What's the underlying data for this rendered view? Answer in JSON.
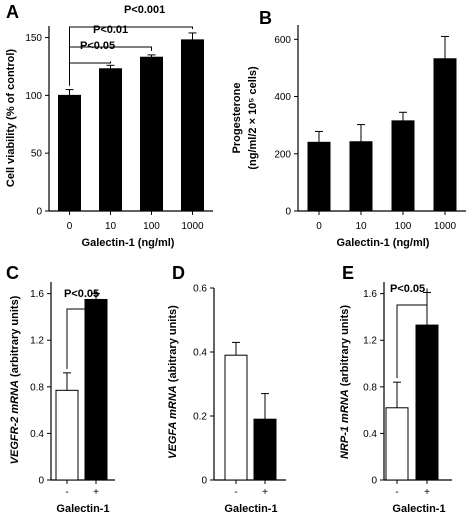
{
  "chart_data": [
    {
      "panel": "A",
      "type": "bar",
      "categories": [
        "0",
        "10",
        "100",
        "1000"
      ],
      "values": [
        100,
        123,
        133,
        148
      ],
      "errors": [
        5,
        3,
        2,
        6
      ],
      "ylabel": "Cell viability (% of control)",
      "xlabel": "Galectin-1 (ng/ml)",
      "ylim": [
        0,
        160
      ],
      "yticks": [
        "0",
        "50",
        "100",
        "150"
      ],
      "bar_color": "#000000",
      "significance": [
        {
          "from": 0,
          "to": 1,
          "label": "P<0.05"
        },
        {
          "from": 0,
          "to": 2,
          "label": "P<0.01"
        },
        {
          "from": 0,
          "to": 3,
          "label": "P<0.001"
        }
      ]
    },
    {
      "panel": "B",
      "type": "bar",
      "categories": [
        "0",
        "10",
        "100",
        "1000"
      ],
      "values": [
        240,
        242,
        315,
        532
      ],
      "errors": [
        38,
        60,
        30,
        78
      ],
      "ylabel_line1": "Progesterone",
      "ylabel_line2": "(ng/ml/2 × 10⁵ cells)",
      "xlabel": "Galectin-1 (ng/ml)",
      "ylim": [
        0,
        650
      ],
      "yticks": [
        "0",
        "200",
        "400",
        "600"
      ],
      "bar_color": "#000000"
    },
    {
      "panel": "C",
      "type": "bar",
      "categories": [
        "-",
        "+"
      ],
      "values": [
        0.77,
        1.55
      ],
      "errors": [
        0.15,
        0.05
      ],
      "ylabel_gene": "VEGFR-2 mRNA",
      "ylabel_rest": " (arbitrary units)",
      "xlabel": "Galectin-1",
      "ylim": [
        0,
        1.7
      ],
      "yticks": [
        "0",
        "0.4",
        "0.8",
        "1.2",
        "1.6"
      ],
      "bar_colors": [
        "#ffffff",
        "#000000"
      ],
      "significance": [
        {
          "from": 0,
          "to": 1,
          "label": "P<0.05"
        }
      ]
    },
    {
      "panel": "D",
      "type": "bar",
      "categories": [
        "-",
        "+"
      ],
      "values": [
        0.39,
        0.19
      ],
      "errors": [
        0.04,
        0.08
      ],
      "ylabel_gene": "VEGFA mRNA",
      "ylabel_rest": " (abitrary units)",
      "xlabel": "Galectin-1",
      "ylim": [
        0,
        0.6
      ],
      "yticks": [
        "0",
        "0.2",
        "0.4",
        "0.6"
      ],
      "bar_colors": [
        "#ffffff",
        "#000000"
      ]
    },
    {
      "panel": "E",
      "type": "bar",
      "categories": [
        "-",
        "+"
      ],
      "values": [
        0.62,
        1.33
      ],
      "errors": [
        0.22,
        0.28
      ],
      "ylabel_gene": "NRP-1 mRNA",
      "ylabel_rest": " (arbitrary units)",
      "xlabel": "Galectin-1",
      "ylim": [
        0,
        1.7
      ],
      "yticks": [
        "0",
        "0.4",
        "0.8",
        "1.2",
        "1.6"
      ],
      "bar_colors": [
        "#ffffff",
        "#000000"
      ],
      "significance": [
        {
          "from": 0,
          "to": 1,
          "label": "P<0.05"
        }
      ]
    }
  ]
}
